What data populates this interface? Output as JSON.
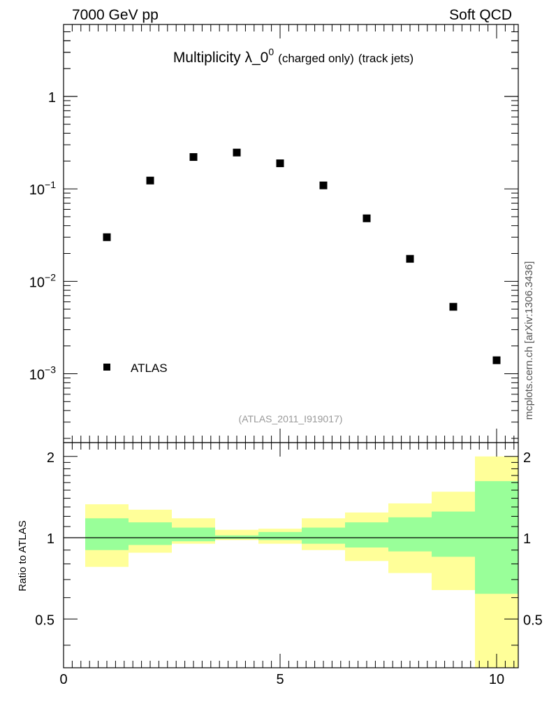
{
  "header": {
    "energy_label": "7000 GeV pp",
    "category_label": "Soft QCD",
    "watermark": "mcplots.cern.ch [arXiv:1306.3436]"
  },
  "colors": {
    "band_outer": "#ffff99",
    "band_inner": "#99ff99",
    "marker": "#000000",
    "source_ref": "#999999"
  },
  "chart_data": [
    {
      "type": "scatter",
      "title_main": "Multiplicity λ_0",
      "title_sup": "0",
      "title_sub1": "(charged only)",
      "title_sub2": "(track jets)",
      "source_ref": "(ATLAS_2011_I919017)",
      "yscale": "log",
      "xlim": [
        0,
        10.5
      ],
      "ylim": [
        0.00018,
        6
      ],
      "y_tick_labels": [
        {
          "value": 0.001,
          "base": "10",
          "exp": "−3"
        },
        {
          "value": 0.01,
          "base": "10",
          "exp": "−2"
        },
        {
          "value": 0.1,
          "base": "10",
          "exp": "−1"
        },
        {
          "value": 1,
          "base": "1",
          "exp": ""
        }
      ],
      "legend": {
        "label": "ATLAS",
        "position": "bottom-left"
      },
      "series": [
        {
          "name": "ATLAS",
          "x": [
            1,
            2,
            3,
            4,
            5,
            6,
            7,
            8,
            9,
            10
          ],
          "y": [
            0.03,
            0.123,
            0.221,
            0.247,
            0.189,
            0.109,
            0.048,
            0.0175,
            0.0053,
            0.0014
          ]
        }
      ]
    },
    {
      "type": "area",
      "ylabel": "Ratio to ATLAS",
      "xlim": [
        0,
        10.5
      ],
      "ylim": [
        0.33,
        2.25
      ],
      "x_ticks": [
        0,
        5,
        10
      ],
      "y_tick_labels": [
        "0.5",
        "1",
        "2"
      ],
      "y_ticks": [
        0.5,
        1,
        2
      ],
      "reference": 1,
      "bins": [
        {
          "lo": 0.5,
          "hi": 1.5,
          "inner": [
            0.9,
            1.18
          ],
          "outer": [
            0.78,
            1.33
          ]
        },
        {
          "lo": 1.5,
          "hi": 2.5,
          "inner": [
            0.94,
            1.14
          ],
          "outer": [
            0.88,
            1.27
          ]
        },
        {
          "lo": 2.5,
          "hi": 3.5,
          "inner": [
            0.97,
            1.09
          ],
          "outer": [
            0.95,
            1.18
          ]
        },
        {
          "lo": 3.5,
          "hi": 4.5,
          "inner": [
            0.99,
            1.02
          ],
          "outer": [
            0.98,
            1.07
          ]
        },
        {
          "lo": 4.5,
          "hi": 5.5,
          "inner": [
            0.98,
            1.05
          ],
          "outer": [
            0.95,
            1.08
          ]
        },
        {
          "lo": 5.5,
          "hi": 6.5,
          "inner": [
            0.95,
            1.09
          ],
          "outer": [
            0.9,
            1.18
          ]
        },
        {
          "lo": 6.5,
          "hi": 7.5,
          "inner": [
            0.92,
            1.14
          ],
          "outer": [
            0.82,
            1.24
          ]
        },
        {
          "lo": 7.5,
          "hi": 8.5,
          "inner": [
            0.89,
            1.19
          ],
          "outer": [
            0.74,
            1.34
          ]
        },
        {
          "lo": 8.5,
          "hi": 9.5,
          "inner": [
            0.85,
            1.25
          ],
          "outer": [
            0.64,
            1.48
          ]
        },
        {
          "lo": 9.5,
          "hi": 10.5,
          "inner": [
            0.62,
            1.62
          ],
          "outer": [
            0.33,
            2.0
          ]
        }
      ]
    }
  ]
}
